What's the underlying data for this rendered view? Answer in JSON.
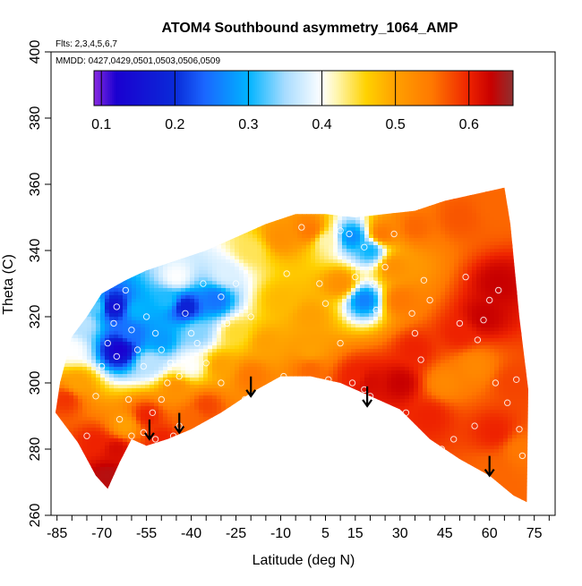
{
  "chart_data": {
    "type": "heatmap",
    "title": "ATOM4 Southbound asymmetry_1064_AMP",
    "flights_label": "Flts: 2,3,4,5,6,7",
    "dates_label": "MMDD: 0427,0429,0501,0503,0506,0509",
    "xlabel": "Latitude (deg N)",
    "ylabel": "Theta (C)",
    "xlim": [
      -87,
      82
    ],
    "ylim": [
      260,
      400
    ],
    "x_ticks": [
      -85,
      -70,
      -55,
      -40,
      -25,
      -10,
      5,
      15,
      30,
      45,
      60,
      75
    ],
    "x_minor_step": 5,
    "y_ticks": [
      260,
      280,
      300,
      320,
      340,
      360,
      380,
      400
    ],
    "colorbar": {
      "min": 0.09,
      "max": 0.66,
      "ticks": [
        0.1,
        0.2,
        0.3,
        0.4,
        0.5,
        0.6
      ],
      "stops": [
        [
          0.09,
          "#8a2be2"
        ],
        [
          0.12,
          "#1a00d0"
        ],
        [
          0.2,
          "#0a2ad8"
        ],
        [
          0.24,
          "#1a66ff"
        ],
        [
          0.3,
          "#00b4ff"
        ],
        [
          0.35,
          "#a8dcff"
        ],
        [
          0.4,
          "#ffffff"
        ],
        [
          0.42,
          "#fff6b0"
        ],
        [
          0.46,
          "#ffd200"
        ],
        [
          0.5,
          "#ffa000"
        ],
        [
          0.55,
          "#ff7800"
        ],
        [
          0.6,
          "#ee2200"
        ],
        [
          0.63,
          "#c80000"
        ],
        [
          0.66,
          "#903030"
        ]
      ]
    },
    "domain_boundary": [
      [
        -85.5,
        291
      ],
      [
        -84,
        300
      ],
      [
        -80,
        314
      ],
      [
        -75,
        320
      ],
      [
        -70,
        327
      ],
      [
        -62,
        331
      ],
      [
        -55,
        334
      ],
      [
        -45,
        337
      ],
      [
        -35,
        340
      ],
      [
        -25,
        344
      ],
      [
        -15,
        348
      ],
      [
        -5,
        351
      ],
      [
        5,
        351
      ],
      [
        15,
        350
      ],
      [
        25,
        351
      ],
      [
        35,
        352
      ],
      [
        45,
        355
      ],
      [
        55,
        357
      ],
      [
        65,
        359
      ],
      [
        67,
        348
      ],
      [
        70,
        320
      ],
      [
        73,
        298
      ],
      [
        72.5,
        264
      ],
      [
        68,
        266
      ],
      [
        60,
        272
      ],
      [
        50,
        277
      ],
      [
        40,
        283
      ],
      [
        30,
        292
      ],
      [
        20,
        296
      ],
      [
        10,
        300
      ],
      [
        0,
        302
      ],
      [
        -10,
        302
      ],
      [
        -20,
        297
      ],
      [
        -30,
        291
      ],
      [
        -40,
        286
      ],
      [
        -48,
        283
      ],
      [
        -55,
        281
      ],
      [
        -60,
        283
      ],
      [
        -64,
        276
      ],
      [
        -68,
        268
      ],
      [
        -72,
        272
      ],
      [
        -78,
        282
      ],
      [
        -83,
        288
      ]
    ],
    "field_samples": [
      {
        "lat": -82,
        "theta": 295,
        "value": 0.59
      },
      {
        "lat": -78,
        "theta": 300,
        "value": 0.5
      },
      {
        "lat": -80,
        "theta": 310,
        "value": 0.4
      },
      {
        "lat": -76,
        "theta": 318,
        "value": 0.36
      },
      {
        "lat": -72,
        "theta": 323,
        "value": 0.33
      },
      {
        "lat": -66,
        "theta": 323,
        "value": 0.15
      },
      {
        "lat": -64,
        "theta": 310,
        "value": 0.12
      },
      {
        "lat": -60,
        "theta": 315,
        "value": 0.25
      },
      {
        "lat": -58,
        "theta": 322,
        "value": 0.3
      },
      {
        "lat": -54,
        "theta": 306,
        "value": 0.36
      },
      {
        "lat": -50,
        "theta": 313,
        "value": 0.28
      },
      {
        "lat": -48,
        "theta": 325,
        "value": 0.31
      },
      {
        "lat": -45,
        "theta": 332,
        "value": 0.4
      },
      {
        "lat": -42,
        "theta": 323,
        "value": 0.18
      },
      {
        "lat": -38,
        "theta": 315,
        "value": 0.34
      },
      {
        "lat": -40,
        "theta": 305,
        "value": 0.4
      },
      {
        "lat": -32,
        "theta": 325,
        "value": 0.25
      },
      {
        "lat": -28,
        "theta": 333,
        "value": 0.38
      },
      {
        "lat": -20,
        "theta": 340,
        "value": 0.44
      },
      {
        "lat": -10,
        "theta": 344,
        "value": 0.52
      },
      {
        "lat": 0,
        "theta": 346,
        "value": 0.55
      },
      {
        "lat": 5,
        "theta": 343,
        "value": 0.42
      },
      {
        "lat": 14,
        "theta": 344,
        "value": 0.27
      },
      {
        "lat": 20,
        "theta": 340,
        "value": 0.3
      },
      {
        "lat": 18,
        "theta": 325,
        "value": 0.26
      },
      {
        "lat": 24,
        "theta": 345,
        "value": 0.55
      },
      {
        "lat": 35,
        "theta": 347,
        "value": 0.56
      },
      {
        "lat": 50,
        "theta": 350,
        "value": 0.57
      },
      {
        "lat": 62,
        "theta": 353,
        "value": 0.56
      },
      {
        "lat": 63,
        "theta": 330,
        "value": 0.63
      },
      {
        "lat": 58,
        "theta": 320,
        "value": 0.63
      },
      {
        "lat": 50,
        "theta": 315,
        "value": 0.6
      },
      {
        "lat": 55,
        "theta": 305,
        "value": 0.53
      },
      {
        "lat": 45,
        "theta": 300,
        "value": 0.53
      },
      {
        "lat": 68,
        "theta": 300,
        "value": 0.58
      },
      {
        "lat": 70,
        "theta": 280,
        "value": 0.55
      },
      {
        "lat": 62,
        "theta": 285,
        "value": 0.6
      },
      {
        "lat": 60,
        "theta": 273,
        "value": 0.56
      },
      {
        "lat": 40,
        "theta": 290,
        "value": 0.6
      },
      {
        "lat": 35,
        "theta": 310,
        "value": 0.6
      },
      {
        "lat": 30,
        "theta": 300,
        "value": 0.63
      },
      {
        "lat": 30,
        "theta": 325,
        "value": 0.55
      },
      {
        "lat": 28,
        "theta": 335,
        "value": 0.52
      },
      {
        "lat": 10,
        "theta": 330,
        "value": 0.52
      },
      {
        "lat": 0,
        "theta": 320,
        "value": 0.5
      },
      {
        "lat": -10,
        "theta": 325,
        "value": 0.48
      },
      {
        "lat": 0,
        "theta": 310,
        "value": 0.5
      },
      {
        "lat": -15,
        "theta": 312,
        "value": 0.5
      },
      {
        "lat": -25,
        "theta": 315,
        "value": 0.45
      },
      {
        "lat": -30,
        "theta": 305,
        "value": 0.5
      },
      {
        "lat": -20,
        "theta": 302,
        "value": 0.55
      },
      {
        "lat": 0,
        "theta": 304,
        "value": 0.56
      },
      {
        "lat": 15,
        "theta": 302,
        "value": 0.6
      },
      {
        "lat": 20,
        "theta": 300,
        "value": 0.62
      },
      {
        "lat": -45,
        "theta": 298,
        "value": 0.52
      },
      {
        "lat": -55,
        "theta": 290,
        "value": 0.6
      },
      {
        "lat": -62,
        "theta": 287,
        "value": 0.5
      },
      {
        "lat": -65,
        "theta": 280,
        "value": 0.62
      },
      {
        "lat": -68,
        "theta": 272,
        "value": 0.64
      },
      {
        "lat": -72,
        "theta": 282,
        "value": 0.6
      },
      {
        "lat": -50,
        "theta": 283,
        "value": 0.6
      },
      {
        "lat": -40,
        "theta": 290,
        "value": 0.56
      },
      {
        "lat": -35,
        "theta": 293,
        "value": 0.58
      }
    ],
    "observations": [
      [
        -75,
        284
      ],
      [
        -72,
        296
      ],
      [
        -70,
        305
      ],
      [
        -68,
        312
      ],
      [
        -66,
        318
      ],
      [
        -65,
        323
      ],
      [
        -62,
        328
      ],
      [
        -60,
        316
      ],
      [
        -58,
        310
      ],
      [
        -56,
        305
      ],
      [
        -55,
        320
      ],
      [
        -52,
        315
      ],
      [
        -50,
        310
      ],
      [
        -48,
        300
      ],
      [
        -50,
        295
      ],
      [
        -53,
        291
      ],
      [
        -60,
        284
      ],
      [
        -56,
        285
      ],
      [
        -52,
        283
      ],
      [
        -46,
        284
      ],
      [
        -44,
        287
      ],
      [
        -42,
        321
      ],
      [
        -40,
        315
      ],
      [
        -38,
        312
      ],
      [
        -35,
        306
      ],
      [
        -30,
        300
      ],
      [
        -28,
        318
      ],
      [
        -30,
        326
      ],
      [
        -25,
        330
      ],
      [
        -22,
        295
      ],
      [
        -18,
        296
      ],
      [
        -15,
        349
      ],
      [
        -12,
        350
      ],
      [
        -9,
        302
      ],
      [
        -5,
        301
      ],
      [
        -8,
        333
      ],
      [
        -3,
        347
      ],
      [
        0,
        301
      ],
      [
        3,
        330
      ],
      [
        6,
        301
      ],
      [
        10,
        346
      ],
      [
        13,
        345
      ],
      [
        15,
        332
      ],
      [
        18,
        341
      ],
      [
        20,
        296
      ],
      [
        18,
        298
      ],
      [
        14,
        300
      ],
      [
        22,
        322
      ],
      [
        25,
        335
      ],
      [
        28,
        345
      ],
      [
        32,
        291
      ],
      [
        34,
        321
      ],
      [
        35,
        315
      ],
      [
        37,
        307
      ],
      [
        38,
        331
      ],
      [
        40,
        325
      ],
      [
        44,
        280
      ],
      [
        48,
        283
      ],
      [
        50,
        318
      ],
      [
        52,
        332
      ],
      [
        55,
        287
      ],
      [
        56,
        313
      ],
      [
        58,
        319
      ],
      [
        60,
        325
      ],
      [
        63,
        328
      ],
      [
        62,
        300
      ],
      [
        66,
        294
      ],
      [
        69,
        301
      ],
      [
        70,
        286
      ],
      [
        71,
        278
      ],
      [
        -64,
        289
      ],
      [
        -61,
        295
      ],
      [
        -65,
        308
      ],
      [
        -47,
        306
      ],
      [
        -44,
        302
      ],
      [
        -36,
        330
      ],
      [
        -20,
        320
      ],
      [
        10,
        312
      ],
      [
        21,
        330
      ],
      [
        5,
        324
      ]
    ],
    "arrows": [
      {
        "lat": -54,
        "theta": 283
      },
      {
        "lat": -44,
        "theta": 285
      },
      {
        "lat": -20,
        "theta": 296
      },
      {
        "lat": 19,
        "theta": 293
      },
      {
        "lat": 60,
        "theta": 272
      }
    ]
  }
}
